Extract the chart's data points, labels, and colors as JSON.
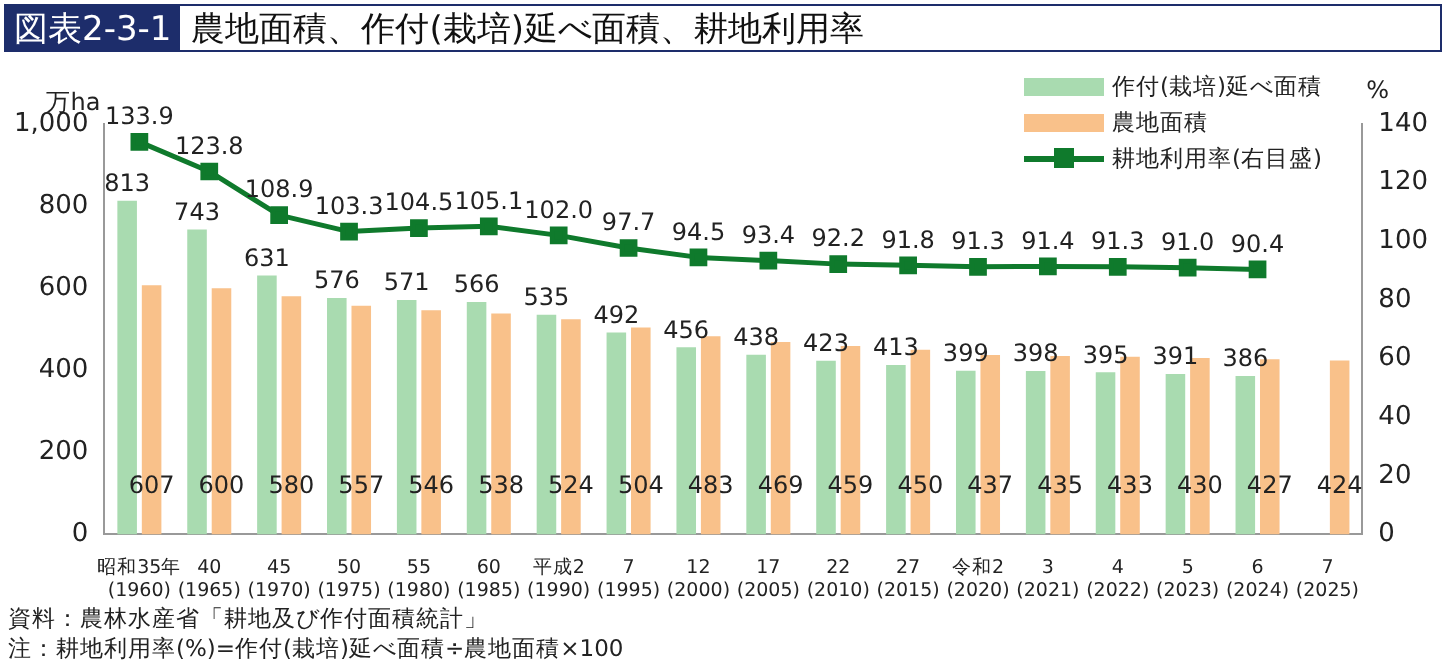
{
  "chart_data": {
    "type": "bar",
    "title": "図表2-3-1 農地面積、作付(栽培)延べ面積、耕地利用率",
    "ylabel": "万ha",
    "y2label": "%",
    "categories": [
      "昭和35年\n(1960)",
      "40\n(1965)",
      "45\n(1970)",
      "50\n(1975)",
      "55\n(1980)",
      "60\n(1985)",
      "平成2\n(1990)",
      "7\n(1995)",
      "12\n(2000)",
      "17\n(2005)",
      "22\n(2010)",
      "27\n(2015)",
      "令和2\n(2020)",
      "3\n(2021)",
      "4\n(2022)",
      "5\n(2023)",
      "6\n(2024)",
      "7\n(2025)"
    ],
    "series": [
      {
        "name": "作付(栽培)延べ面積",
        "color": "#a9dbb0",
        "values": [
          813,
          743,
          631,
          576,
          571,
          566,
          535,
          492,
          456,
          438,
          423,
          413,
          399,
          398,
          395,
          391,
          386,
          null
        ]
      },
      {
        "name": "農地面積",
        "color": "#f9c18a",
        "values": [
          607,
          600,
          580,
          557,
          546,
          538,
          524,
          504,
          483,
          469,
          459,
          450,
          437,
          435,
          433,
          430,
          427,
          424
        ]
      },
      {
        "name": "耕地利用率(右目盛)",
        "color": "#0f7a2c",
        "type": "line",
        "axis": "y2",
        "values": [
          133.9,
          123.8,
          108.9,
          103.3,
          104.5,
          105.1,
          102.0,
          97.7,
          94.5,
          93.4,
          92.2,
          91.8,
          91.3,
          91.4,
          91.3,
          91.0,
          90.4,
          null
        ],
        "value_labels": [
          "133.9",
          "123.8",
          "108.9",
          "103.3",
          "104.5",
          "105.1",
          "102.0",
          "97.7",
          "94.5",
          "93.4",
          "92.2",
          "91.8",
          "91.3",
          "91.4",
          "91.3",
          "91.0",
          "90.4",
          null
        ]
      }
    ],
    "ylim": [
      0,
      1000
    ],
    "yticks": [
      0,
      200,
      400,
      600,
      800,
      {
        "value": 1000,
        "label": "1,000"
      }
    ],
    "y2lim": [
      0,
      140
    ],
    "y2ticks": [
      0,
      20,
      40,
      60,
      80,
      100,
      120,
      140
    ],
    "data_labels": true,
    "marker": "square",
    "line_style": "solid",
    "grid": false,
    "legend": "top right",
    "annotations": [
      "資料：農林水産省「耕地及び作付面積統計」",
      "注：耕地利用率(%)=作付(栽培)延べ面積÷農地面積×100"
    ]
  }
}
